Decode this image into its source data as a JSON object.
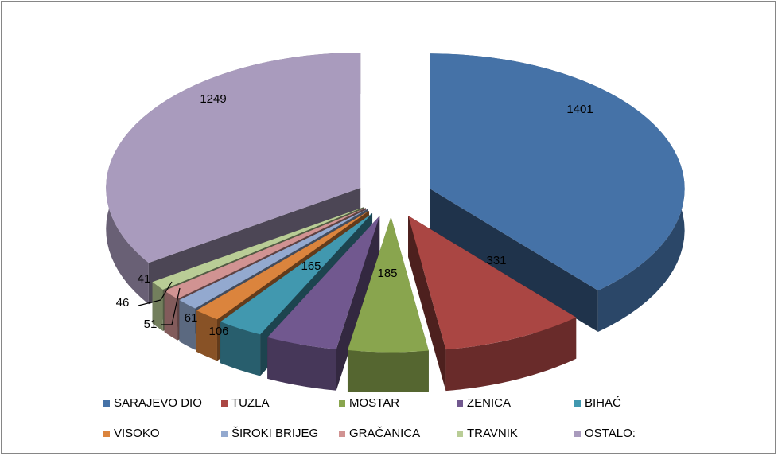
{
  "chart_data": {
    "type": "pie",
    "style": "3d-exploded",
    "title": "",
    "slices": [
      {
        "label": "SARAJEVO DIO",
        "value": 1401,
        "color": "#4572A7"
      },
      {
        "label": "TUZLA",
        "value": 331,
        "color": "#AA4643"
      },
      {
        "label": "MOSTAR",
        "value": 185,
        "color": "#89A54E"
      },
      {
        "label": "ZENICA",
        "value": 165,
        "color": "#71588F"
      },
      {
        "label": "BIHAĆ",
        "value": 106,
        "color": "#4198AF"
      },
      {
        "label": "VISOKO",
        "value": 61,
        "color": "#DB843D"
      },
      {
        "label": "ŠIROKI BRIJEG",
        "value": 51,
        "color": "#93A9CF"
      },
      {
        "label": "GRAČANICA",
        "value": 46,
        "color": "#D19392"
      },
      {
        "label": "TRAVNIK",
        "value": 41,
        "color": "#B9CD96"
      },
      {
        "label": "OSTALO:",
        "value": 1249,
        "color": "#A99BBD"
      }
    ],
    "legend_position": "bottom"
  }
}
